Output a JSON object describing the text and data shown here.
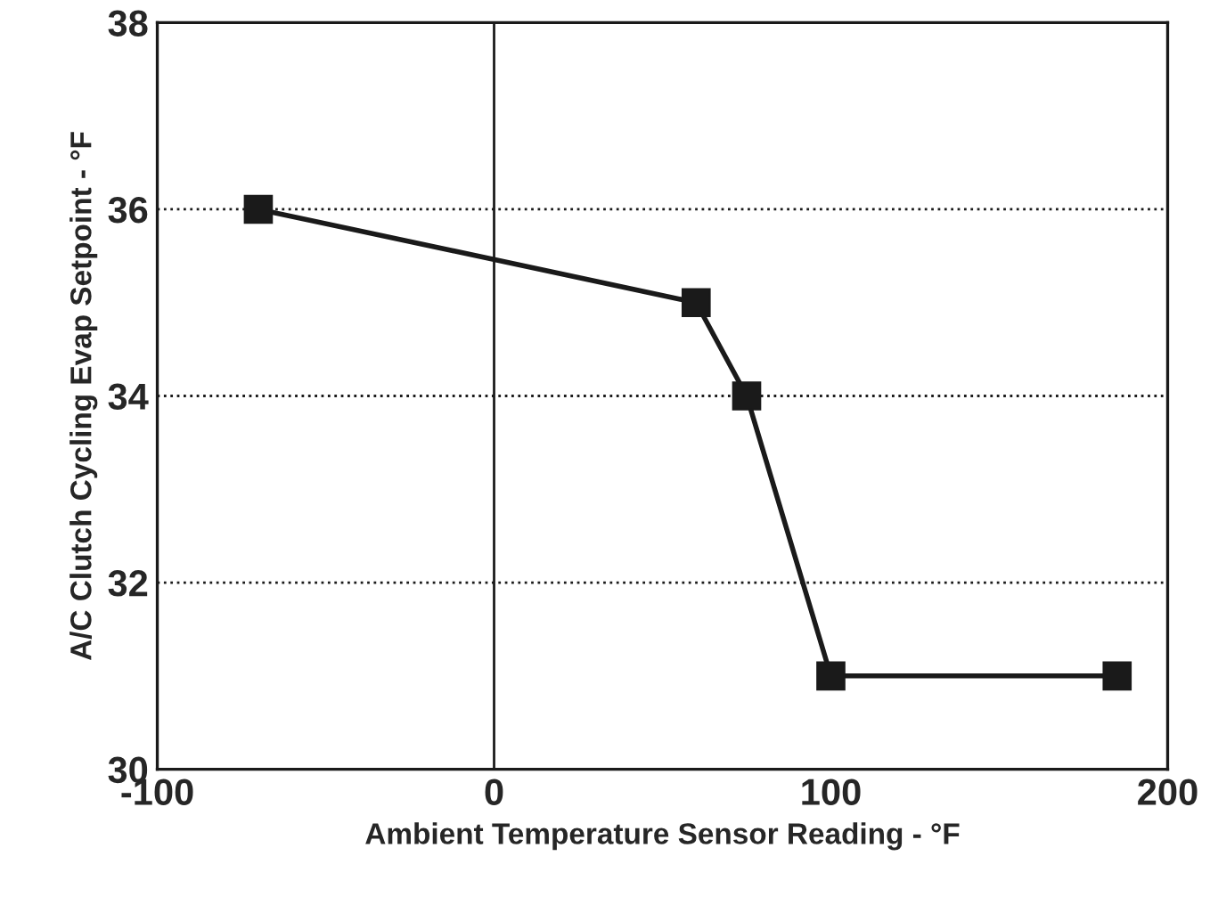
{
  "chart_data": {
    "type": "line",
    "xlabel": "Ambient Temperature Sensor Reading - °F",
    "ylabel": "A/C Clutch Cycling Evap Setpoint - °F",
    "x": [
      -70,
      60,
      75,
      100,
      185
    ],
    "series": [
      {
        "color": "#1a1a1a",
        "values": [
          36,
          35,
          34,
          31,
          31
        ]
      }
    ],
    "xlim": [
      -100,
      200
    ],
    "xticks": [
      -100,
      0,
      100,
      200
    ],
    "ylim": [
      30,
      38
    ],
    "yticks": [
      30,
      32,
      34,
      36,
      38
    ],
    "grid": "y",
    "marker": "square",
    "line_style": "solid",
    "ref_lines": [
      {
        "axis": "x",
        "value": 0,
        "color": "#1a1a1a",
        "line_style": "solid"
      }
    ]
  }
}
